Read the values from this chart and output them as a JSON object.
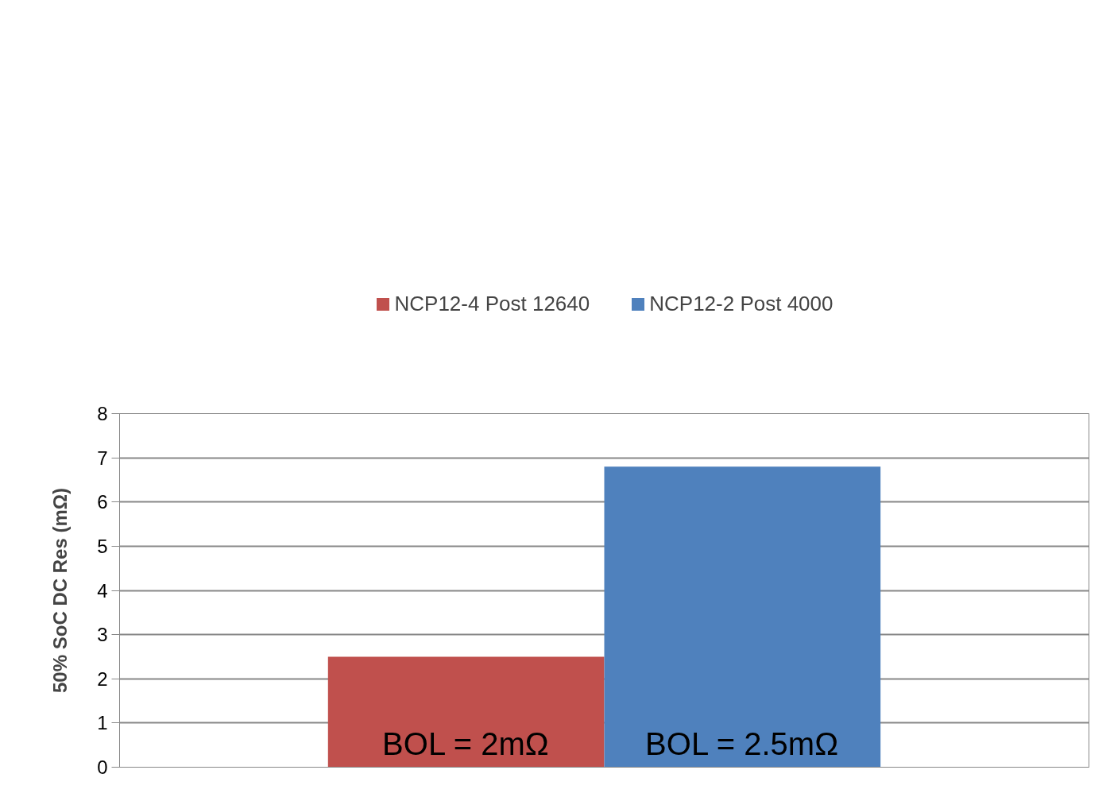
{
  "chart_data": {
    "type": "bar",
    "ylabel": "50% SoC DC Res (mΩ)",
    "categories": [
      null
    ],
    "series": [
      {
        "name": "NCP12-4 Post 12640",
        "color": "#c0504d",
        "values": [
          2.5
        ]
      },
      {
        "name": "NCP12-2 Post 4000",
        "color": "#4f81bd",
        "values": [
          6.8
        ]
      }
    ],
    "ylim": [
      0,
      8
    ],
    "yticks": [
      0,
      1,
      2,
      3,
      4,
      5,
      6,
      7,
      8
    ],
    "grid": "y",
    "legend": "top",
    "tick_labels": "y",
    "annotations": [
      "BOL = 2mΩ",
      "BOL = 2.5mΩ"
    ]
  }
}
